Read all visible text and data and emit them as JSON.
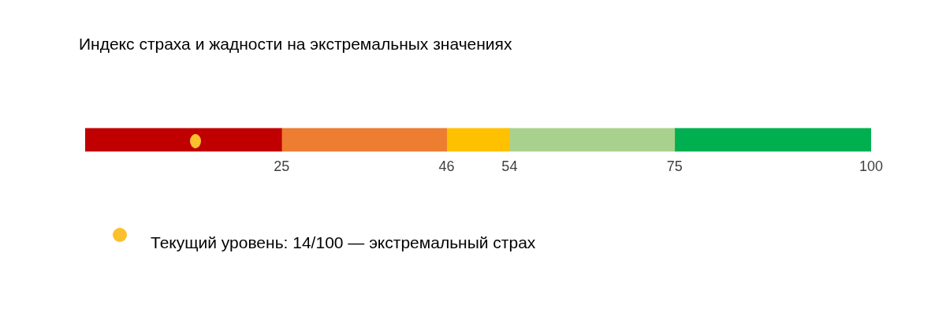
{
  "chart_data": {
    "type": "bar",
    "title": "Индекс страха и жадности на экстремальных значениях",
    "orientation": "horizontal",
    "stacked": true,
    "categories": [
      null
    ],
    "series": [
      {
        "color": "#c00000",
        "values": [
          25
        ]
      },
      {
        "color": "#ed7d31",
        "values": [
          21
        ]
      },
      {
        "color": "#ffc000",
        "values": [
          8
        ]
      },
      {
        "color": "#a9d18e",
        "values": [
          21
        ]
      },
      {
        "color": "#00b050",
        "values": [
          25
        ]
      }
    ],
    "annotations": [
      "Текущий уровень: 14/100 — экстремальный страх"
    ],
    "ref_lines": [
      {
        "axis": "x",
        "value": 14,
        "color": "#fbc02d"
      }
    ],
    "xlim": [
      0,
      100
    ],
    "xticks": [
      25,
      46,
      54,
      75,
      100
    ],
    "tick_labels": "x",
    "grid": false
  }
}
